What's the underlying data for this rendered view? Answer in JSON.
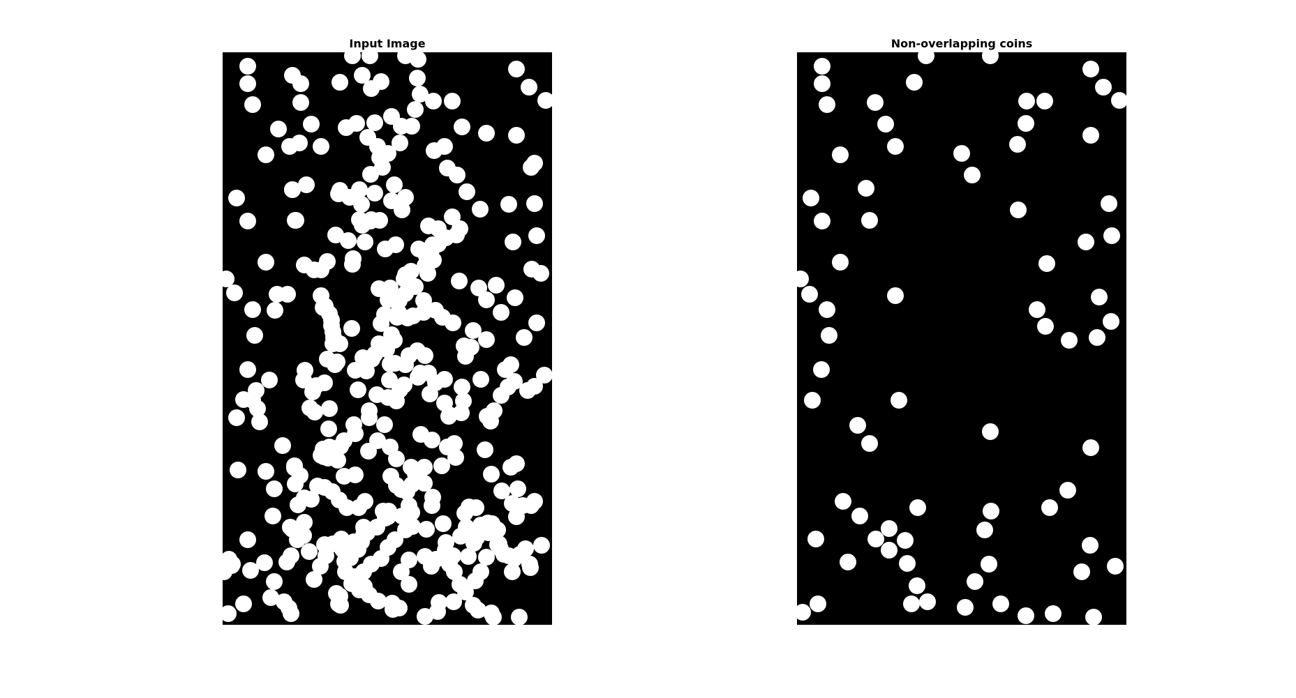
{
  "figure": {
    "background": "#ffffff",
    "panels": [
      {
        "title": "Input Image",
        "background": "#000000",
        "foreground": "#ffffff"
      },
      {
        "title": "Non-overlapping coins",
        "background": "#000000",
        "foreground": "#ffffff"
      }
    ]
  }
}
